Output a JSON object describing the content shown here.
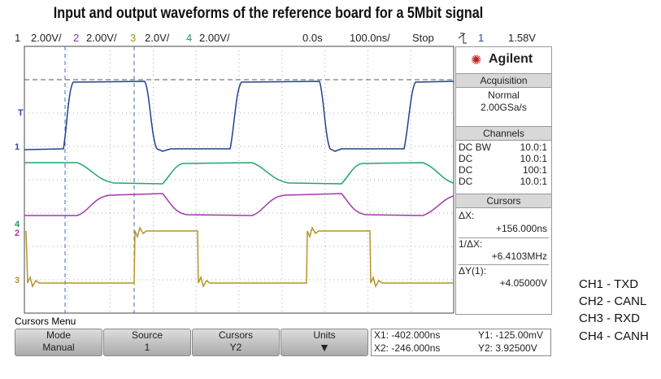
{
  "title": "Input and output waveforms of the reference board for a 5Mbit signal",
  "status_bar": {
    "ch1": "1",
    "ch1_scale": "2.00V/",
    "ch2": "2",
    "ch2_scale": "2.00V/",
    "ch3": "3",
    "ch3_scale": "2.0V/",
    "ch4": "4",
    "ch4_scale": "2.00V/",
    "time_offset": "0.0s",
    "time_scale": "100.0ns/",
    "run_state": "Stop",
    "trigger_source": "1",
    "trigger_level": "1.58V"
  },
  "channel_markers": [
    "T",
    "1",
    "4",
    "2",
    "3"
  ],
  "side_panel": {
    "brand": "Agilent",
    "acquisition": {
      "heading": "Acquisition",
      "mode": "Normal",
      "rate": "2.00GSa/s"
    },
    "channels": {
      "heading": "Channels",
      "rows": [
        [
          "DC BW",
          "10.0:1"
        ],
        [
          "DC",
          "10.0:1"
        ],
        [
          "DC",
          "100:1"
        ],
        [
          "DC",
          "10.0:1"
        ]
      ]
    },
    "cursors": {
      "heading": "Cursors",
      "dx_label": "ΔX:",
      "dx": "+156.000ns",
      "inv_dx_label": "1/ΔX:",
      "inv_dx": "+6.4103MHz",
      "dy_label": "ΔY(1):",
      "dy": "+4.05000V"
    }
  },
  "menu": {
    "title": "Cursors Menu",
    "softkeys": [
      {
        "label": "Mode",
        "value": "Manual"
      },
      {
        "label": "Source",
        "value": "1"
      },
      {
        "label": "Cursors",
        "value": "Y2"
      },
      {
        "label": "Units"
      }
    ],
    "readouts": {
      "x1": "X1: -402.000ns",
      "x2": "X2: -246.000ns",
      "y1": "Y1: -125.00mV",
      "y2": "Y2: 3.92500V"
    }
  },
  "legend": [
    "CH1 - TXD",
    "CH2 - CANL",
    "CH3 - RXD",
    "CH4 - CANH"
  ]
}
